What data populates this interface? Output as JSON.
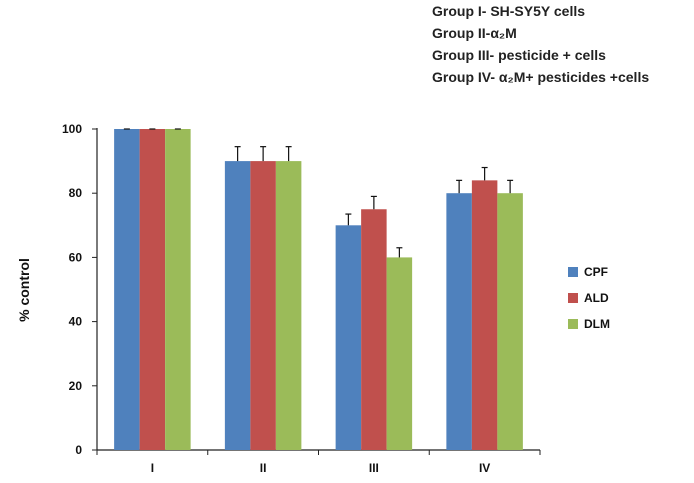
{
  "notes": [
    "Group I- SH-SY5Y cells",
    "Group II-α₂M",
    "Group III- pesticide + cells",
    "Group IV- α₂M+ pesticides +cells"
  ],
  "chart_data": {
    "type": "bar",
    "title": "",
    "xlabel": "",
    "ylabel": "% control",
    "ylim": [
      0,
      100
    ],
    "yticks": [
      0,
      20,
      40,
      60,
      80,
      100
    ],
    "categories": [
      "I",
      "II",
      "III",
      "IV"
    ],
    "series": [
      {
        "name": "CPF",
        "color": "#4f81bd",
        "values": [
          100,
          90,
          70,
          80
        ],
        "errors": [
          0,
          4.5,
          3.5,
          4
        ]
      },
      {
        "name": "ALD",
        "color": "#c0504d",
        "values": [
          100,
          90,
          75,
          84
        ],
        "errors": [
          0,
          4.5,
          4,
          4
        ]
      },
      {
        "name": "DLM",
        "color": "#9bbb59",
        "values": [
          100,
          90,
          60,
          80
        ],
        "errors": [
          0,
          4.5,
          3,
          4
        ]
      }
    ],
    "grid": false,
    "legend_position": "right",
    "error_bars": true
  }
}
